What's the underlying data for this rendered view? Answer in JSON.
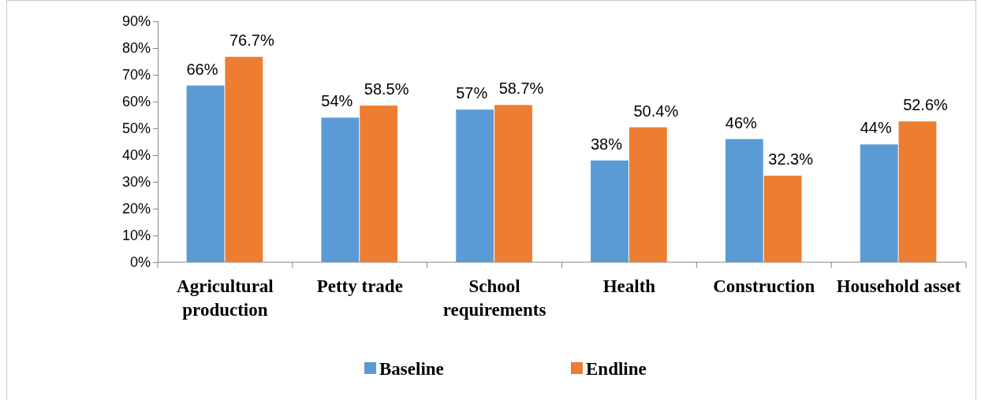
{
  "chart_data": {
    "type": "bar",
    "categories": [
      "Agricultural production",
      "Petty trade",
      "School requirements",
      "Health",
      "Construction",
      "Household asset"
    ],
    "series": [
      {
        "name": "Baseline",
        "color": "#5b9bd5",
        "values": [
          66,
          54,
          57,
          38,
          46,
          44
        ],
        "value_labels": [
          "66%",
          "54%",
          "57%",
          "38%",
          "46%",
          "44%"
        ]
      },
      {
        "name": "Endline",
        "color": "#ed7d31",
        "values": [
          76.7,
          58.5,
          58.7,
          50.4,
          32.3,
          52.6
        ],
        "value_labels": [
          "76.7%",
          "58.5%",
          "58.7%",
          "50.4%",
          "32.3%",
          "52.6%"
        ]
      }
    ],
    "ylim": [
      0,
      90
    ],
    "yticks": [
      {
        "value": 0,
        "label": "0%"
      },
      {
        "value": 10,
        "label": "10%"
      },
      {
        "value": 20,
        "label": "20%"
      },
      {
        "value": 30,
        "label": "30%"
      },
      {
        "value": 40,
        "label": "40%"
      },
      {
        "value": 50,
        "label": "50%"
      },
      {
        "value": 60,
        "label": "60%"
      },
      {
        "value": 70,
        "label": "70%"
      },
      {
        "value": 80,
        "label": "80%"
      },
      {
        "value": 90,
        "label": "90%"
      }
    ],
    "grid": false,
    "legend": "bottom"
  }
}
